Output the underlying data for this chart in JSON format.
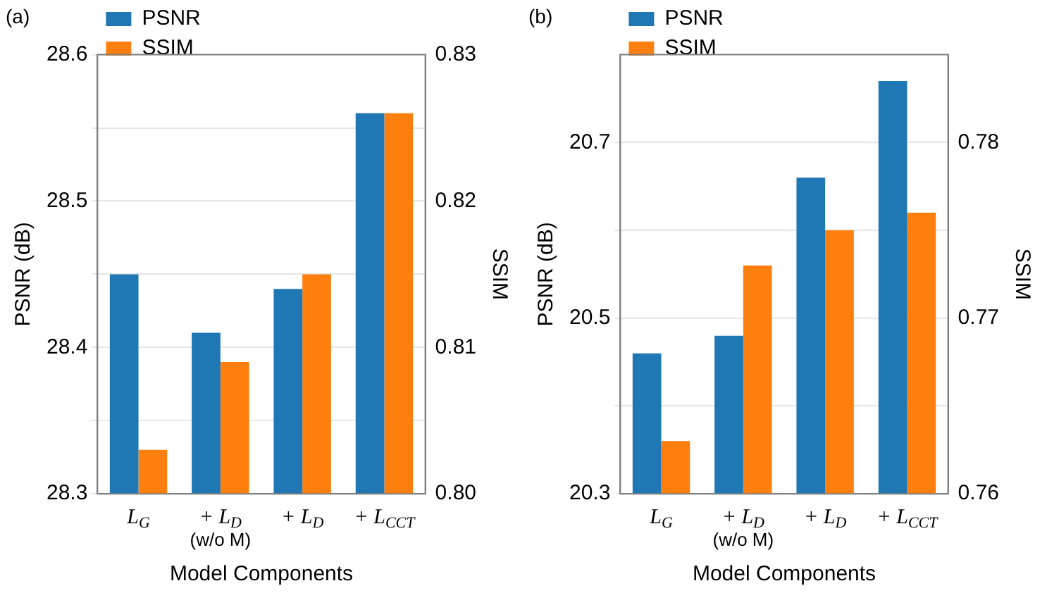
{
  "chart_data": [
    {
      "type": "bar",
      "title": "(a)",
      "xlabel": "Model Components",
      "ylabel": "PSNR (dB)",
      "y2label": "SSIM",
      "categories": [
        "L$_{G}$",
        "+ L$_{D}$\n(w/o M)",
        "+ L$_{D}$",
        "+ L$_{CCT}$"
      ],
      "series": [
        {
          "name": "PSNR",
          "color": "#1f77b4",
          "values": [
            28.45,
            28.41,
            28.44,
            28.56
          ]
        },
        {
          "name": "SSIM",
          "color": "#ff7f0e",
          "axis": "y2",
          "values": [
            0.803,
            0.809,
            0.815,
            0.826
          ]
        }
      ],
      "ylim": [
        28.3,
        28.6
      ],
      "yticks": [
        28.3,
        {
          "value": 28.35,
          "label": null
        },
        28.4,
        {
          "value": 28.45,
          "label": null
        },
        28.5,
        {
          "value": 28.55,
          "label": null
        },
        28.6
      ],
      "y2lim": [
        0.8,
        0.83
      ],
      "y2ticks": [
        {
          "value": 0.8,
          "label": "0.80"
        },
        {
          "value": 0.805,
          "label": null
        },
        0.81,
        {
          "value": 0.815,
          "label": null
        },
        0.82,
        {
          "value": 0.825,
          "label": null
        },
        0.83
      ],
      "grid": "y",
      "legend": "top left"
    },
    {
      "type": "bar",
      "title": "(b)",
      "xlabel": "Model Components",
      "ylabel": "PSNR (dB)",
      "y2label": "SSIM",
      "categories": [
        "L$_{G}$",
        "+ L$_{D}$\n(w/o M)",
        "+ L$_{D}$",
        "+ L$_{CCT}$"
      ],
      "series": [
        {
          "name": "PSNR",
          "color": "#1f77b4",
          "values": [
            20.46,
            20.48,
            20.66,
            20.77
          ]
        },
        {
          "name": "SSIM",
          "color": "#ff7f0e",
          "axis": "y2",
          "values": [
            0.763,
            0.773,
            0.775,
            0.776
          ]
        }
      ],
      "ylim": [
        20.3,
        20.8
      ],
      "yticks": [
        20.3,
        {
          "value": 20.4,
          "label": null
        },
        20.5,
        {
          "value": 20.6,
          "label": null
        },
        20.7
      ],
      "y2lim": [
        0.76,
        0.785
      ],
      "y2ticks": [
        0.76,
        {
          "value": 0.765,
          "label": null
        },
        0.77,
        {
          "value": 0.775,
          "label": null
        },
        0.78
      ],
      "grid": "y",
      "legend": "top left"
    }
  ]
}
